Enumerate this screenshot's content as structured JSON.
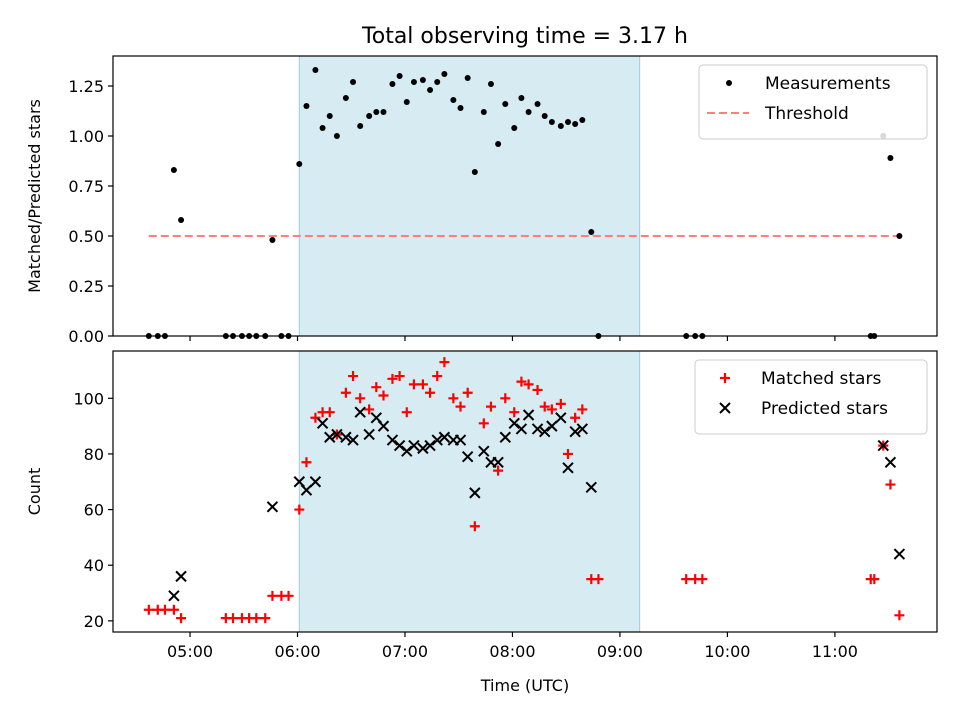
{
  "title": "Total observing time = 3.17 h",
  "chart_data": [
    {
      "type": "scatter",
      "ylabel": "Matched/Predicted stars",
      "xlabel": "",
      "xlim": [
        "04:17",
        "11:57"
      ],
      "ylim": [
        0,
        1.4
      ],
      "yticks": [
        "0.00",
        "0.25",
        "0.50",
        "0.75",
        "1.00",
        "1.25"
      ],
      "shaded_span": [
        "06:01",
        "09:11"
      ],
      "legend_position": "top-right",
      "threshold": {
        "name": "Threshold",
        "y": 0.5,
        "x_range": [
          "04:37",
          "11:37"
        ],
        "color": "#ff7f7f"
      },
      "series": [
        {
          "name": "Measurements",
          "color": "#000000",
          "points": [
            [
              "04:37",
              0
            ],
            [
              "04:42",
              0
            ],
            [
              "04:46",
              0
            ],
            [
              "04:51",
              0.83
            ],
            [
              "04:55",
              0.58
            ],
            [
              "05:20",
              0
            ],
            [
              "05:24",
              0
            ],
            [
              "05:29",
              0
            ],
            [
              "05:33",
              0
            ],
            [
              "05:37",
              0
            ],
            [
              "05:42",
              0
            ],
            [
              "05:46",
              0.48
            ],
            [
              "05:51",
              0
            ],
            [
              "05:55",
              0
            ],
            [
              "06:01",
              0.86
            ],
            [
              "06:05",
              1.15
            ],
            [
              "06:10",
              1.33
            ],
            [
              "06:14",
              1.04
            ],
            [
              "06:18",
              1.1
            ],
            [
              "06:22",
              1.0
            ],
            [
              "06:27",
              1.19
            ],
            [
              "06:31",
              1.27
            ],
            [
              "06:35",
              1.05
            ],
            [
              "06:40",
              1.1
            ],
            [
              "06:44",
              1.12
            ],
            [
              "06:48",
              1.12
            ],
            [
              "06:53",
              1.26
            ],
            [
              "06:57",
              1.3
            ],
            [
              "07:01",
              1.17
            ],
            [
              "07:05",
              1.27
            ],
            [
              "07:10",
              1.28
            ],
            [
              "07:14",
              1.23
            ],
            [
              "07:18",
              1.27
            ],
            [
              "07:22",
              1.31
            ],
            [
              "07:27",
              1.18
            ],
            [
              "07:31",
              1.14
            ],
            [
              "07:35",
              1.29
            ],
            [
              "07:39",
              0.82
            ],
            [
              "07:44",
              1.12
            ],
            [
              "07:48",
              1.26
            ],
            [
              "07:52",
              0.96
            ],
            [
              "07:56",
              1.16
            ],
            [
              "08:01",
              1.04
            ],
            [
              "08:05",
              1.19
            ],
            [
              "08:09",
              1.12
            ],
            [
              "08:14",
              1.16
            ],
            [
              "08:18",
              1.1
            ],
            [
              "08:22",
              1.07
            ],
            [
              "08:27",
              1.05
            ],
            [
              "08:31",
              1.07
            ],
            [
              "08:35",
              1.06
            ],
            [
              "08:39",
              1.08
            ],
            [
              "08:44",
              0.52
            ],
            [
              "08:48",
              0
            ],
            [
              "09:37",
              0
            ],
            [
              "09:42",
              0
            ],
            [
              "09:46",
              0
            ],
            [
              "11:20",
              0
            ],
            [
              "11:22",
              0
            ],
            [
              "11:27",
              1.0
            ],
            [
              "11:31",
              0.89
            ],
            [
              "11:36",
              0.5
            ]
          ]
        }
      ]
    },
    {
      "type": "scatter",
      "ylabel": "Count",
      "xlabel": "Time (UTC)",
      "xlim": [
        "04:17",
        "11:57"
      ],
      "ylim": [
        16,
        117
      ],
      "yticks": [
        "20",
        "40",
        "60",
        "80",
        "100"
      ],
      "xticks": [
        "05:00",
        "06:00",
        "07:00",
        "08:00",
        "09:00",
        "10:00",
        "11:00"
      ],
      "shaded_span": [
        "06:01",
        "09:11"
      ],
      "legend_position": "top-right",
      "series": [
        {
          "name": "Matched stars",
          "marker": "+",
          "color": "#ff0000",
          "points": [
            [
              "04:37",
              24
            ],
            [
              "04:42",
              24
            ],
            [
              "04:46",
              24
            ],
            [
              "04:51",
              24
            ],
            [
              "04:55",
              21
            ],
            [
              "05:20",
              21
            ],
            [
              "05:24",
              21
            ],
            [
              "05:29",
              21
            ],
            [
              "05:33",
              21
            ],
            [
              "05:37",
              21
            ],
            [
              "05:42",
              21
            ],
            [
              "05:46",
              29
            ],
            [
              "05:51",
              29
            ],
            [
              "05:55",
              29
            ],
            [
              "06:01",
              60
            ],
            [
              "06:05",
              77
            ],
            [
              "06:10",
              93
            ],
            [
              "06:14",
              95
            ],
            [
              "06:18",
              95
            ],
            [
              "06:22",
              87
            ],
            [
              "06:27",
              102
            ],
            [
              "06:31",
              108
            ],
            [
              "06:35",
              100
            ],
            [
              "06:40",
              96
            ],
            [
              "06:44",
              104
            ],
            [
              "06:48",
              101
            ],
            [
              "06:53",
              107
            ],
            [
              "06:57",
              108
            ],
            [
              "07:01",
              95
            ],
            [
              "07:05",
              105
            ],
            [
              "07:10",
              105
            ],
            [
              "07:14",
              102
            ],
            [
              "07:18",
              108
            ],
            [
              "07:22",
              113
            ],
            [
              "07:27",
              100
            ],
            [
              "07:31",
              97
            ],
            [
              "07:35",
              102
            ],
            [
              "07:39",
              54
            ],
            [
              "07:44",
              91
            ],
            [
              "07:48",
              97
            ],
            [
              "07:52",
              74
            ],
            [
              "07:56",
              100
            ],
            [
              "08:01",
              95
            ],
            [
              "08:05",
              106
            ],
            [
              "08:09",
              105
            ],
            [
              "08:14",
              103
            ],
            [
              "08:18",
              97
            ],
            [
              "08:22",
              96
            ],
            [
              "08:27",
              98
            ],
            [
              "08:31",
              80
            ],
            [
              "08:35",
              93
            ],
            [
              "08:39",
              96
            ],
            [
              "08:44",
              35
            ],
            [
              "08:48",
              35
            ],
            [
              "09:37",
              35
            ],
            [
              "09:42",
              35
            ],
            [
              "09:46",
              35
            ],
            [
              "11:20",
              35
            ],
            [
              "11:22",
              35
            ],
            [
              "11:27",
              83
            ],
            [
              "11:31",
              69
            ],
            [
              "11:36",
              22
            ]
          ]
        },
        {
          "name": "Predicted stars",
          "marker": "x",
          "color": "#000000",
          "points": [
            [
              "04:51",
              29
            ],
            [
              "04:55",
              36
            ],
            [
              "05:46",
              61
            ],
            [
              "06:01",
              70
            ],
            [
              "06:05",
              67
            ],
            [
              "06:10",
              70
            ],
            [
              "06:14",
              91
            ],
            [
              "06:18",
              86
            ],
            [
              "06:22",
              87
            ],
            [
              "06:27",
              86
            ],
            [
              "06:31",
              85
            ],
            [
              "06:35",
              95
            ],
            [
              "06:40",
              87
            ],
            [
              "06:44",
              93
            ],
            [
              "06:48",
              90
            ],
            [
              "06:53",
              85
            ],
            [
              "06:57",
              83
            ],
            [
              "07:01",
              81
            ],
            [
              "07:05",
              83
            ],
            [
              "07:10",
              82
            ],
            [
              "07:14",
              83
            ],
            [
              "07:18",
              85
            ],
            [
              "07:22",
              86
            ],
            [
              "07:27",
              85
            ],
            [
              "07:31",
              85
            ],
            [
              "07:35",
              79
            ],
            [
              "07:39",
              66
            ],
            [
              "07:44",
              81
            ],
            [
              "07:48",
              77
            ],
            [
              "07:52",
              77
            ],
            [
              "07:56",
              86
            ],
            [
              "08:01",
              91
            ],
            [
              "08:05",
              89
            ],
            [
              "08:09",
              94
            ],
            [
              "08:14",
              89
            ],
            [
              "08:18",
              88
            ],
            [
              "08:22",
              90
            ],
            [
              "08:27",
              93
            ],
            [
              "08:31",
              75
            ],
            [
              "08:35",
              88
            ],
            [
              "08:39",
              89
            ],
            [
              "08:44",
              68
            ],
            [
              "11:27",
              83
            ],
            [
              "11:31",
              77
            ],
            [
              "11:36",
              44
            ]
          ]
        }
      ]
    }
  ]
}
